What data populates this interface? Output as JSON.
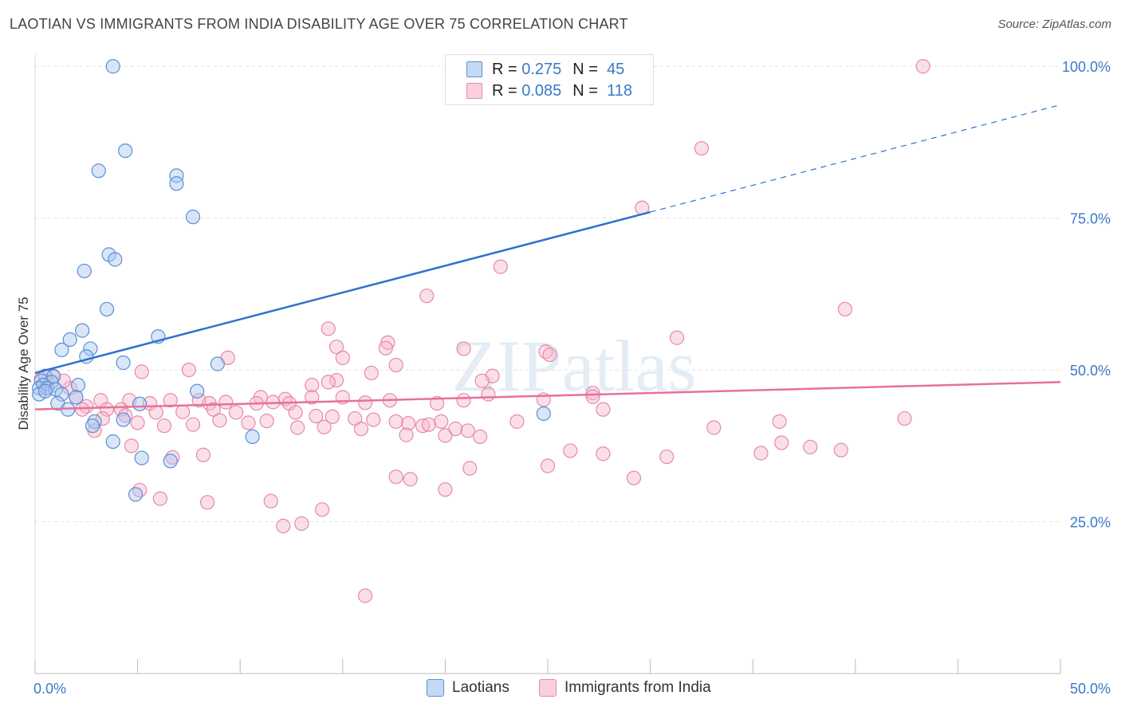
{
  "title": "LAOTIAN VS IMMIGRANTS FROM INDIA DISABILITY AGE OVER 75 CORRELATION CHART",
  "source": "Source: ZipAtlas.com",
  "watermark": "ZIPatlas",
  "legend": {
    "laotians": {
      "r_label": "R =",
      "r": "0.275",
      "n_label": "N =",
      "n": "45"
    },
    "india": {
      "r_label": "R =",
      "r": "0.085",
      "n_label": "N =",
      "n": "118"
    }
  },
  "colors": {
    "laotians_fill": "#a8c8f0",
    "laotians_stroke": "#5b8fd6",
    "laotians_line": "#2f72cc",
    "india_fill": "#f7b8cc",
    "india_stroke": "#e58aa8",
    "india_line": "#e8709a",
    "tick_label": "#3a78c9"
  },
  "chart_data": {
    "type": "scatter",
    "title": "LAOTIAN VS IMMIGRANTS FROM INDIA DISABILITY AGE OVER 75 CORRELATION CHART",
    "xlabel": "",
    "ylabel": "Disability Age Over 75",
    "xlim": [
      0,
      50
    ],
    "ylim": [
      0,
      102
    ],
    "x_tick_labels": [
      "0.0%",
      "50.0%"
    ],
    "y_tick_labels": [
      "25.0%",
      "50.0%",
      "75.0%",
      "100.0%"
    ],
    "y_ticks": [
      25,
      50,
      75,
      100
    ],
    "grid": true,
    "legend_position": "top-center",
    "series": [
      {
        "name": "Laotians",
        "x": [
          3.8,
          22.2,
          4.4,
          3.1,
          6.9,
          6.9,
          7.7,
          3.6,
          3.9,
          2.4,
          3.5,
          2.3,
          6.0,
          1.7,
          2.7,
          1.3,
          2.5,
          4.3,
          8.9,
          0.5,
          0.9,
          0.3,
          0.8,
          0.4,
          0.2,
          0.6,
          1.0,
          0.2,
          0.5,
          2.1,
          1.3,
          2.0,
          1.1,
          5.1,
          7.9,
          1.6,
          2.9,
          4.3,
          10.6,
          2.8,
          3.8,
          5.2,
          6.6,
          4.9,
          24.8
        ],
        "y": [
          100.0,
          100.0,
          86.1,
          82.8,
          82.0,
          80.7,
          75.2,
          69.0,
          68.2,
          66.3,
          60.0,
          56.5,
          55.5,
          55.0,
          53.5,
          53.3,
          52.2,
          51.2,
          51.0,
          49.0,
          48.9,
          48.2,
          48.0,
          47.5,
          47.0,
          47.0,
          46.8,
          46.0,
          46.5,
          47.5,
          46.0,
          45.5,
          44.5,
          44.4,
          46.5,
          43.5,
          41.5,
          41.8,
          39.0,
          40.8,
          38.2,
          35.5,
          35.0,
          29.5,
          42.8
        ]
      },
      {
        "name": "Immigrants from India",
        "x": [
          43.3,
          32.5,
          29.6,
          22.7,
          19.1,
          39.5,
          14.3,
          17.2,
          31.3,
          17.1,
          14.7,
          24.9,
          25.1,
          20.9,
          9.4,
          15.0,
          5.2,
          7.5,
          17.6,
          22.3,
          16.4,
          14.7,
          21.8,
          13.5,
          14.3,
          27.2,
          27.2,
          22.1,
          17.3,
          13.5,
          20.9,
          24.8,
          12.2,
          11.0,
          15.0,
          4.6,
          5.6,
          6.6,
          8.0,
          9.3,
          10.8,
          8.5,
          11.6,
          12.4,
          16.1,
          19.6,
          2.0,
          3.2,
          1.7,
          1.4,
          2.5,
          3.5,
          4.2,
          5.9,
          7.2,
          8.7,
          9.8,
          12.7,
          13.7,
          14.5,
          15.6,
          16.5,
          18.2,
          19.8,
          20.5,
          21.1,
          21.7,
          2.3,
          3.3,
          4.4,
          5.0,
          6.3,
          7.7,
          9.0,
          10.4,
          11.3,
          12.8,
          14.1,
          15.9,
          17.6,
          18.9,
          20.0,
          23.5,
          33.1,
          35.4,
          37.8,
          39.3,
          42.4,
          36.4,
          26.1,
          27.7,
          29.2,
          30.8,
          25.0,
          18.1,
          19.2,
          17.6,
          21.2,
          6.7,
          8.2,
          4.7,
          2.9,
          8.4,
          5.1,
          6.1,
          11.5,
          12.1,
          13.0,
          14.0,
          16.1,
          18.3,
          20.0,
          0.6,
          0.9,
          0.3,
          0.5,
          27.7,
          36.3
        ],
        "y": [
          100.0,
          86.5,
          76.7,
          67.0,
          62.2,
          60.0,
          56.8,
          54.5,
          55.3,
          53.6,
          53.8,
          53.0,
          52.5,
          53.5,
          52.0,
          52.0,
          49.7,
          50.0,
          50.8,
          49.0,
          49.5,
          48.3,
          48.2,
          47.5,
          48.0,
          46.2,
          45.6,
          46.0,
          45.0,
          45.5,
          45.0,
          45.1,
          45.2,
          45.5,
          45.5,
          45.0,
          44.5,
          45.0,
          45.0,
          44.7,
          44.5,
          44.5,
          44.7,
          44.5,
          44.6,
          44.5,
          45.5,
          45.0,
          47.0,
          48.2,
          44.0,
          43.5,
          43.5,
          43.0,
          43.1,
          43.5,
          43.0,
          43.0,
          42.4,
          42.3,
          42.0,
          41.8,
          41.2,
          41.5,
          40.3,
          40.0,
          39.0,
          43.5,
          42.0,
          42.5,
          41.3,
          40.8,
          41.0,
          41.7,
          41.3,
          41.6,
          40.5,
          40.6,
          40.3,
          41.5,
          40.8,
          39.2,
          41.5,
          40.5,
          36.3,
          37.3,
          36.8,
          42.0,
          38.0,
          36.7,
          36.2,
          32.2,
          35.7,
          34.2,
          39.3,
          41.0,
          32.4,
          33.8,
          35.6,
          36.0,
          37.5,
          40.0,
          28.2,
          30.2,
          28.8,
          28.4,
          24.3,
          24.7,
          27.0,
          12.8,
          32.0,
          30.3,
          48.2,
          49.0,
          48.5,
          47.0,
          43.5,
          41.5
        ]
      }
    ],
    "trend_lines": [
      {
        "series": "Laotians",
        "x": [
          0,
          30
        ],
        "y": [
          49.5,
          76.0
        ],
        "dashed_extension_to_x": 50
      },
      {
        "series": "Immigrants from India",
        "x": [
          0,
          50
        ],
        "y": [
          43.5,
          48.0
        ]
      }
    ]
  }
}
